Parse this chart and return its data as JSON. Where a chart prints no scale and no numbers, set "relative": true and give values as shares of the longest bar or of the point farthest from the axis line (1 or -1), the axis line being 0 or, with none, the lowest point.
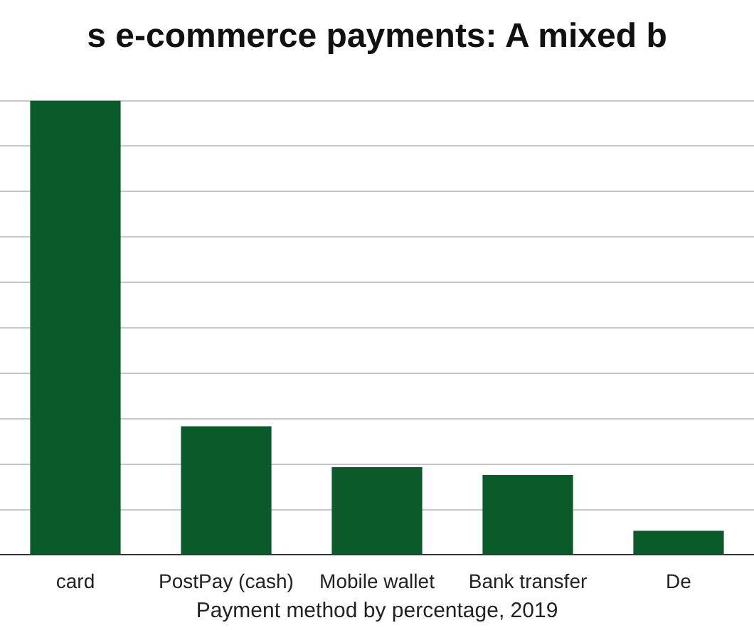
{
  "chart_data": {
    "type": "bar",
    "title": "s e-commerce payments: A mixed b",
    "xlabel": "Payment method by percentage, 2019",
    "categories": [
      "card",
      "PostPay (cash)",
      "Mobile wallet",
      "Bank transfer",
      "De"
    ],
    "values": [
      1,
      0.283,
      0.193,
      0.176,
      0.053
    ],
    "color": "#0b5a2a",
    "relative": true,
    "grid": "y"
  }
}
